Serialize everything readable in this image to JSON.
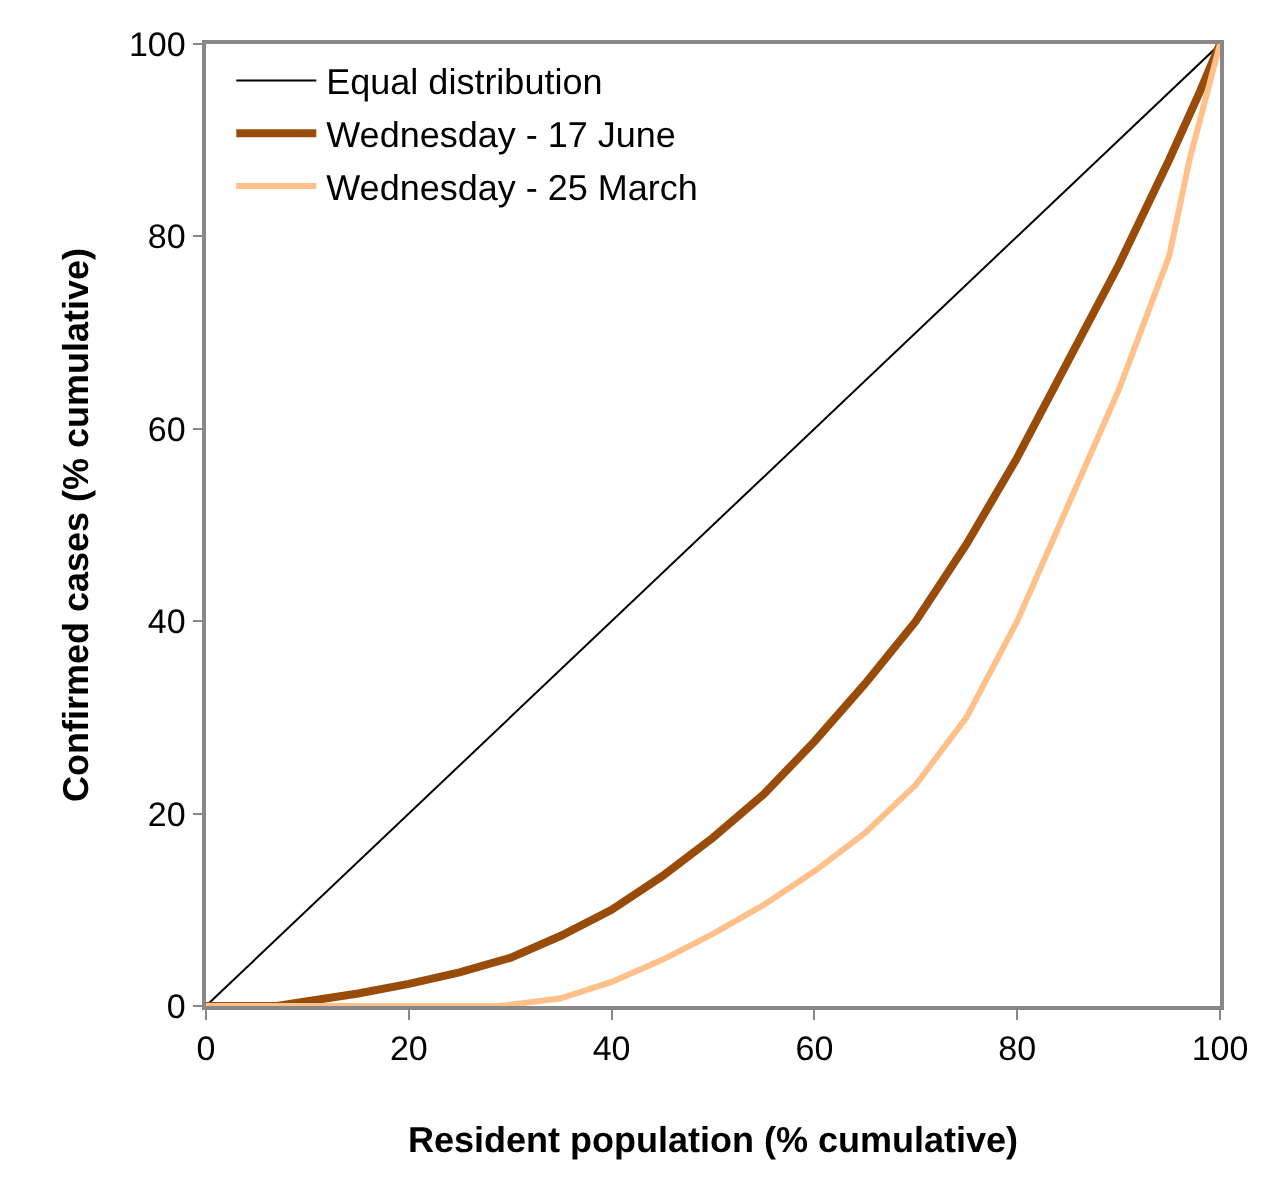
{
  "chart_data": {
    "type": "line",
    "xlabel": "Resident population (% cumulative)",
    "ylabel": "Confirmed cases (% cumulative)",
    "xlim": [
      0,
      100
    ],
    "ylim": [
      0,
      100
    ],
    "xticks": [
      0,
      20,
      40,
      60,
      80,
      100
    ],
    "yticks": [
      0,
      20,
      40,
      60,
      80,
      100
    ],
    "legend": "top left",
    "marker": "none",
    "line_style": "solid",
    "series": [
      {
        "name": "Equal distribution",
        "color": "#000000",
        "x": [
          0,
          100
        ],
        "values": [
          0,
          100
        ]
      },
      {
        "name": "Wednesday - 17 June",
        "color": "#994c0a",
        "x": [
          0,
          7,
          10,
          15,
          20,
          25,
          30,
          35,
          40,
          45,
          50,
          55,
          60,
          65,
          70,
          75,
          80,
          85,
          90,
          95,
          98,
          100
        ],
        "values": [
          0,
          0,
          0.5,
          1.3,
          2.3,
          3.5,
          5,
          7.3,
          10,
          13.5,
          17.5,
          22,
          27.5,
          33.5,
          40,
          48,
          57,
          67,
          77,
          88,
          95,
          100
        ]
      },
      {
        "name": "Wednesday - 25 March",
        "color": "#ffc08a",
        "x": [
          0,
          29,
          35,
          40,
          45,
          50,
          55,
          60,
          65,
          70,
          75,
          80,
          85,
          90,
          95,
          97,
          99,
          100
        ],
        "values": [
          0,
          0,
          0.8,
          2.5,
          4.8,
          7.5,
          10.5,
          14,
          18,
          23,
          30,
          40,
          52,
          64,
          78,
          88,
          96,
          100
        ]
      }
    ]
  }
}
